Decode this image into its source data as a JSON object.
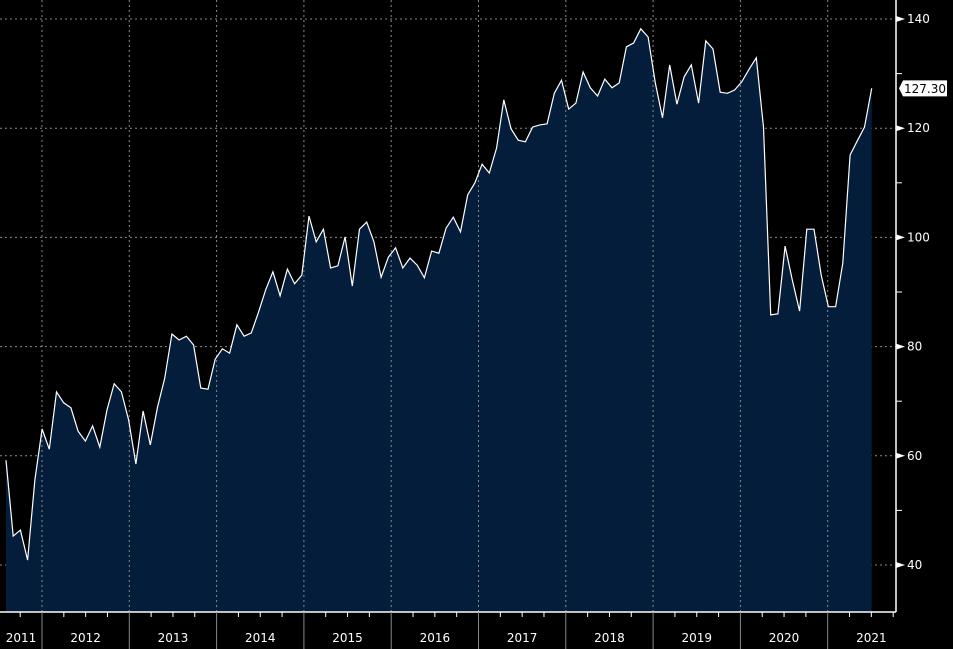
{
  "chart_data": {
    "type": "area",
    "title": "",
    "xlabel": "",
    "ylabel": "",
    "x_start": "2011-07",
    "frequency": "monthly",
    "ylim": [
      31.6,
      143.5
    ],
    "y_ticks": [
      40,
      60,
      80,
      100,
      120,
      140
    ],
    "x_tick_labels": [
      "2011",
      "2012",
      "2013",
      "2014",
      "2015",
      "2016",
      "2017",
      "2018",
      "2019",
      "2020",
      "2021"
    ],
    "grid": true,
    "last_value_label": "127.30",
    "colors": {
      "line": "#ffffff",
      "fill": "#031d3a",
      "grid": "#8a8a8a",
      "background": "#000000"
    },
    "series": [
      {
        "name": "value",
        "values": [
          59.2,
          45.3,
          46.4,
          40.9,
          55.6,
          64.9,
          61.2,
          71.7,
          69.7,
          68.8,
          64.5,
          62.7,
          65.5,
          61.6,
          68.4,
          73.2,
          71.7,
          66.6,
          58.5,
          68.2,
          62.0,
          68.9,
          74.2,
          82.3,
          81.2,
          81.9,
          80.3,
          72.4,
          72.2,
          77.7,
          79.6,
          78.8,
          84.0,
          81.9,
          82.5,
          86.3,
          90.4,
          93.7,
          89.3,
          94.2,
          91.5,
          93.1,
          103.9,
          99.2,
          101.5,
          94.4,
          94.8,
          100.1,
          91.1,
          101.5,
          102.8,
          99.2,
          92.7,
          96.4,
          98.1,
          94.4,
          96.2,
          94.9,
          92.6,
          97.5,
          97.1,
          101.7,
          103.7,
          101.0,
          107.8,
          110.0,
          113.4,
          111.8,
          116.4,
          125.2,
          119.9,
          117.8,
          117.5,
          120.2,
          120.6,
          120.8,
          126.4,
          128.8,
          123.5,
          124.6,
          130.3,
          127.4,
          125.9,
          129.0,
          127.4,
          128.3,
          134.9,
          135.6,
          138.2,
          136.7,
          128.3,
          121.9,
          131.6,
          124.4,
          129.4,
          131.6,
          124.6,
          136.0,
          134.5,
          126.6,
          126.4,
          127.0,
          128.5,
          130.8,
          132.9,
          120.2,
          85.8,
          86.0,
          98.4,
          92.2,
          86.5,
          101.5,
          101.5,
          93.1,
          87.3,
          87.3,
          95.3,
          115.1,
          117.7,
          120.2,
          127.3
        ]
      }
    ]
  }
}
